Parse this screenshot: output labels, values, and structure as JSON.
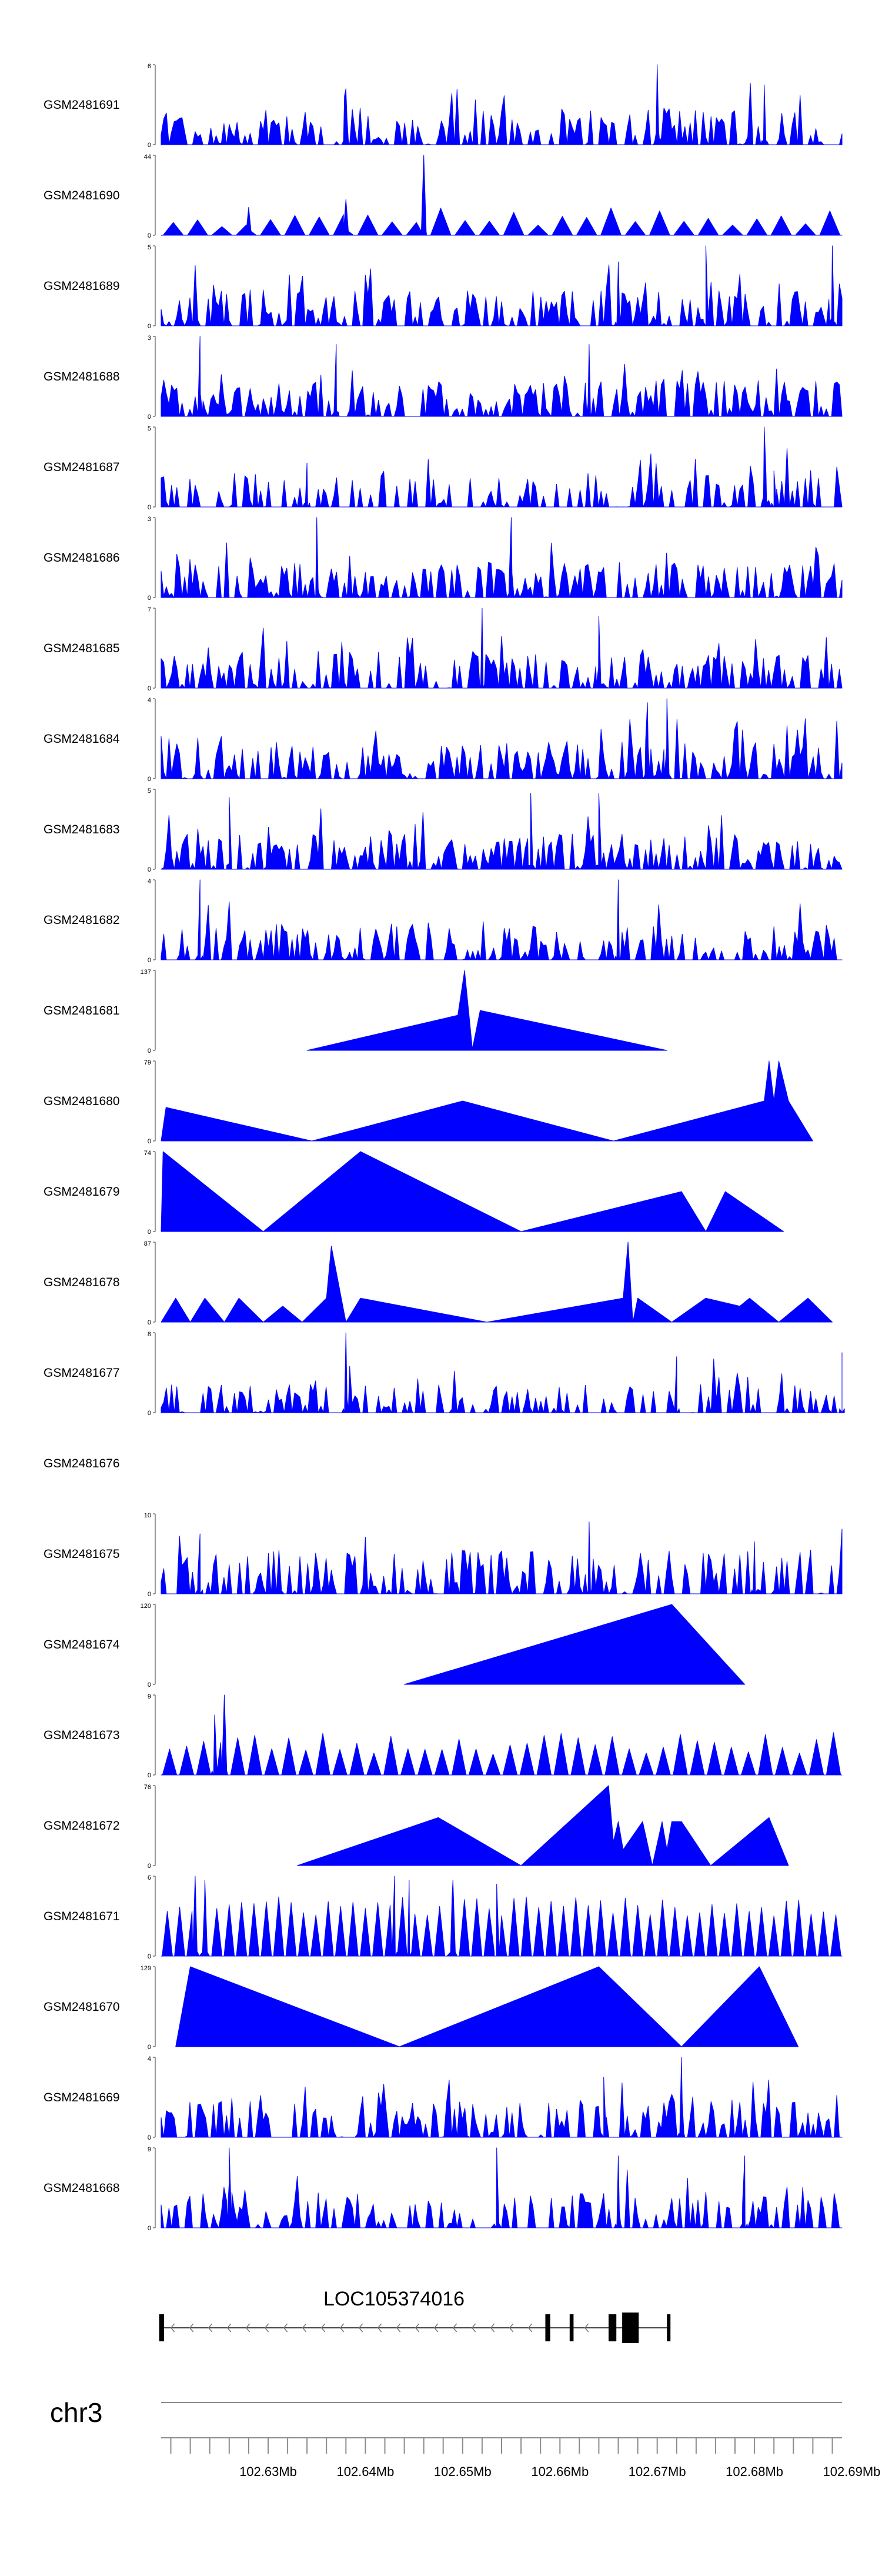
{
  "chart_data": {
    "type": "area",
    "title": "",
    "fill_color": "#0000ff",
    "style": "coverage tracks (peak-shaped areas)",
    "chromosome": "chr3",
    "gene": {
      "name": "LOC105374016",
      "strand": "-",
      "start_mb": 102.6188,
      "end_mb": 102.6713,
      "exons_mb": [
        [
          102.6188,
          102.6193
        ],
        [
          102.6585,
          102.659
        ],
        [
          102.661,
          102.6614
        ],
        [
          102.665,
          102.6658
        ],
        [
          102.6664,
          102.6681
        ],
        [
          102.671,
          102.6713
        ]
      ]
    },
    "xlim_mb": [
      102.619,
      102.689
    ],
    "axis_ticks_mb": [
      102.63,
      102.64,
      102.65,
      102.66,
      102.67,
      102.68,
      102.69
    ],
    "axis_tick_labels": [
      "102.63Mb",
      "102.64Mb",
      "102.65Mb",
      "102.66Mb",
      "102.67Mb",
      "102.68Mb",
      "102.69Mb"
    ],
    "tracks": [
      {
        "name": "GSM2481691",
        "ymin": "0",
        "ymax": "6",
        "max": 6,
        "dense": true,
        "seed": 11,
        "density": 0.55,
        "highlights": [
          [
            102.67,
            1.0
          ],
          [
            102.681,
            0.75
          ],
          [
            102.638,
            0.7
          ]
        ]
      },
      {
        "name": "GSM2481690",
        "ymin": "0",
        "ymax": "44",
        "max": 44,
        "dense": false,
        "seed": 12,
        "sparse_n": 28,
        "sparse_h": [
          0.1,
          0.35
        ],
        "highlights": [
          [
            102.646,
            1.0
          ],
          [
            102.638,
            0.45
          ],
          [
            102.628,
            0.35
          ]
        ]
      },
      {
        "name": "GSM2481689",
        "ymin": "0",
        "ymax": "5",
        "max": 5,
        "dense": true,
        "seed": 13,
        "density": 0.6,
        "highlights": [
          [
            102.675,
            1.0
          ],
          [
            102.688,
            1.0
          ],
          [
            102.666,
            0.8
          ]
        ]
      },
      {
        "name": "GSM2481688",
        "ymin": "0",
        "ymax": "3",
        "max": 3,
        "dense": true,
        "seed": 14,
        "density": 0.65,
        "highlights": [
          [
            102.623,
            1.0
          ],
          [
            102.637,
            0.9
          ],
          [
            102.663,
            0.9
          ]
        ]
      },
      {
        "name": "GSM2481687",
        "ymin": "0",
        "ymax": "5",
        "max": 5,
        "dense": true,
        "seed": 15,
        "density": 0.45,
        "highlights": [
          [
            102.681,
            1.0
          ],
          [
            102.682,
            0.45
          ],
          [
            102.634,
            0.55
          ]
        ]
      },
      {
        "name": "GSM2481686",
        "ymin": "0",
        "ymax": "3",
        "max": 3,
        "dense": true,
        "seed": 16,
        "density": 0.6,
        "highlights": [
          [
            102.635,
            1.0
          ],
          [
            102.655,
            1.0
          ]
        ]
      },
      {
        "name": "GSM2481685",
        "ymin": "0",
        "ymax": "7",
        "max": 7,
        "dense": true,
        "seed": 17,
        "density": 0.55,
        "highlights": [
          [
            102.652,
            1.0
          ],
          [
            102.664,
            0.9
          ]
        ]
      },
      {
        "name": "GSM2481684",
        "ymin": "0",
        "ymax": "4",
        "max": 4,
        "dense": true,
        "seed": 18,
        "density": 0.65,
        "highlights": [
          [
            102.671,
            1.0
          ],
          [
            102.669,
            0.95
          ]
        ]
      },
      {
        "name": "GSM2481683",
        "ymin": "0",
        "ymax": "5",
        "max": 5,
        "dense": true,
        "seed": 19,
        "density": 0.6,
        "highlights": [
          [
            102.657,
            0.95
          ],
          [
            102.664,
            0.95
          ],
          [
            102.626,
            0.9
          ]
        ]
      },
      {
        "name": "GSM2481682",
        "ymin": "0",
        "ymax": "4",
        "max": 4,
        "dense": true,
        "seed": 20,
        "density": 0.6,
        "highlights": [
          [
            102.623,
            1.0
          ],
          [
            102.666,
            1.0
          ]
        ]
      },
      {
        "name": "GSM2481681",
        "ymin": "0",
        "ymax": "137",
        "max": 137,
        "dense": false,
        "points": [
          [
            102.634,
            0
          ],
          [
            102.6495,
            0.44
          ],
          [
            102.6502,
            1.0
          ],
          [
            102.651,
            0.02
          ],
          [
            102.6518,
            0.5
          ],
          [
            102.671,
            0
          ]
        ]
      },
      {
        "name": "GSM2481680",
        "ymin": "0",
        "ymax": "79",
        "max": 79,
        "dense": false,
        "points": [
          [
            102.619,
            0
          ],
          [
            102.6195,
            0.42
          ],
          [
            102.6345,
            0
          ],
          [
            102.65,
            0.5
          ],
          [
            102.6655,
            0
          ],
          [
            102.681,
            0.5
          ],
          [
            102.6815,
            1.0
          ],
          [
            102.682,
            0.5
          ],
          [
            102.6825,
            1.0
          ],
          [
            102.6835,
            0.5
          ],
          [
            102.686,
            0
          ]
        ]
      },
      {
        "name": "GSM2481679",
        "ymin": "0",
        "ymax": "74",
        "max": 74,
        "dense": false,
        "points": [
          [
            102.619,
            0
          ],
          [
            102.6192,
            1.0
          ],
          [
            102.6295,
            0
          ],
          [
            102.6395,
            1.0
          ],
          [
            102.656,
            0
          ],
          [
            102.6725,
            0.5
          ],
          [
            102.675,
            0
          ],
          [
            102.677,
            0.5
          ],
          [
            102.683,
            0
          ]
        ]
      },
      {
        "name": "GSM2481678",
        "ymin": "0",
        "ymax": "87",
        "max": 87,
        "dense": false,
        "points": [
          [
            102.619,
            0
          ],
          [
            102.6205,
            0.3
          ],
          [
            102.622,
            0
          ],
          [
            102.6235,
            0.3
          ],
          [
            102.6255,
            0
          ],
          [
            102.627,
            0.3
          ],
          [
            102.6295,
            0
          ],
          [
            102.6315,
            0.2
          ],
          [
            102.6335,
            0
          ],
          [
            102.636,
            0.3
          ],
          [
            102.6365,
            0.95
          ],
          [
            102.638,
            0
          ],
          [
            102.6395,
            0.3
          ],
          [
            102.6525,
            0
          ],
          [
            102.6665,
            0.3
          ],
          [
            102.667,
            1.0
          ],
          [
            102.6675,
            0
          ],
          [
            102.668,
            0.3
          ],
          [
            102.6715,
            0
          ],
          [
            102.675,
            0.3
          ],
          [
            102.6785,
            0.2
          ],
          [
            102.6795,
            0.3
          ],
          [
            102.6825,
            0
          ],
          [
            102.6845,
            0.2
          ],
          [
            102.6855,
            0.3
          ],
          [
            102.688,
            0
          ]
        ]
      },
      {
        "name": "GSM2481677",
        "ymin": "0",
        "ymax": "8",
        "max": 8,
        "dense": true,
        "seed": 21,
        "density": 0.45,
        "scale": 0.35,
        "highlights": [
          [
            102.638,
            1.0
          ],
          [
            102.689,
            0.75
          ],
          [
            102.672,
            0.7
          ]
        ]
      },
      {
        "name": "GSM2481676",
        "ymin": "",
        "ymax": "",
        "max": 0,
        "empty": true
      },
      {
        "name": "GSM2481675",
        "ymin": "0",
        "ymax": "10",
        "max": 10,
        "dense": true,
        "seed": 22,
        "density": 0.5,
        "scale": 0.55,
        "highlights": [
          [
            102.663,
            0.9
          ],
          [
            102.623,
            0.75
          ],
          [
            102.68,
            0.65
          ]
        ]
      },
      {
        "name": "GSM2481674",
        "ymin": "0",
        "ymax": "120",
        "max": 120,
        "dense": false,
        "points": [
          [
            102.644,
            0
          ],
          [
            102.6715,
            1.0
          ],
          [
            102.679,
            0
          ]
        ]
      },
      {
        "name": "GSM2481673",
        "ymin": "0",
        "ymax": "9",
        "max": 9,
        "dense": false,
        "seed": 23,
        "sparse_n": 40,
        "sparse_h": [
          0.25,
          0.55
        ],
        "highlights": [
          [
            102.6255,
            1.0
          ],
          [
            102.6245,
            0.75
          ]
        ]
      },
      {
        "name": "GSM2481672",
        "ymin": "0",
        "ymax": "76",
        "max": 76,
        "dense": false,
        "points": [
          [
            102.633,
            0
          ],
          [
            102.6475,
            0.6
          ],
          [
            102.656,
            0
          ],
          [
            102.665,
            1.0
          ],
          [
            102.6655,
            0.3
          ],
          [
            102.666,
            0.55
          ],
          [
            102.6665,
            0.2
          ],
          [
            102.6685,
            0.55
          ],
          [
            102.6695,
            0
          ],
          [
            102.6705,
            0.55
          ],
          [
            102.671,
            0.2
          ],
          [
            102.6715,
            0.55
          ],
          [
            102.6725,
            0.55
          ],
          [
            102.6755,
            0
          ],
          [
            102.6815,
            0.6
          ],
          [
            102.6835,
            0
          ]
        ]
      },
      {
        "name": "GSM2481671",
        "ymin": "0",
        "ymax": "6",
        "max": 6,
        "dense": false,
        "seed": 24,
        "sparse_n": 55,
        "sparse_h": [
          0.5,
          0.75
        ],
        "highlights": [
          [
            102.6225,
            1.0
          ],
          [
            102.6235,
            0.95
          ],
          [
            102.643,
            1.0
          ],
          [
            102.6445,
            0.95
          ],
          [
            102.649,
            0.95
          ],
          [
            102.6535,
            0.9
          ]
        ]
      },
      {
        "name": "GSM2481670",
        "ymin": "0",
        "ymax": "129",
        "max": 129,
        "dense": false,
        "points": [
          [
            102.6205,
            0
          ],
          [
            102.622,
            1.0
          ],
          [
            102.6435,
            0
          ],
          [
            102.664,
            1.0
          ],
          [
            102.6725,
            0
          ],
          [
            102.6805,
            1.0
          ],
          [
            102.6845,
            0
          ]
        ]
      },
      {
        "name": "GSM2481669",
        "ymin": "0",
        "ymax": "4",
        "max": 4,
        "dense": true,
        "seed": 25,
        "density": 0.55,
        "highlights": [
          [
            102.6725,
            1.0
          ],
          [
            102.6645,
            0.75
          ]
        ]
      },
      {
        "name": "GSM2481668",
        "ymin": "0",
        "ymax": "9",
        "max": 9,
        "dense": true,
        "seed": 26,
        "density": 0.4,
        "highlights": [
          [
            102.626,
            1.0
          ],
          [
            102.6535,
            1.0
          ],
          [
            102.666,
            0.9
          ],
          [
            102.679,
            0.9
          ]
        ]
      }
    ]
  }
}
